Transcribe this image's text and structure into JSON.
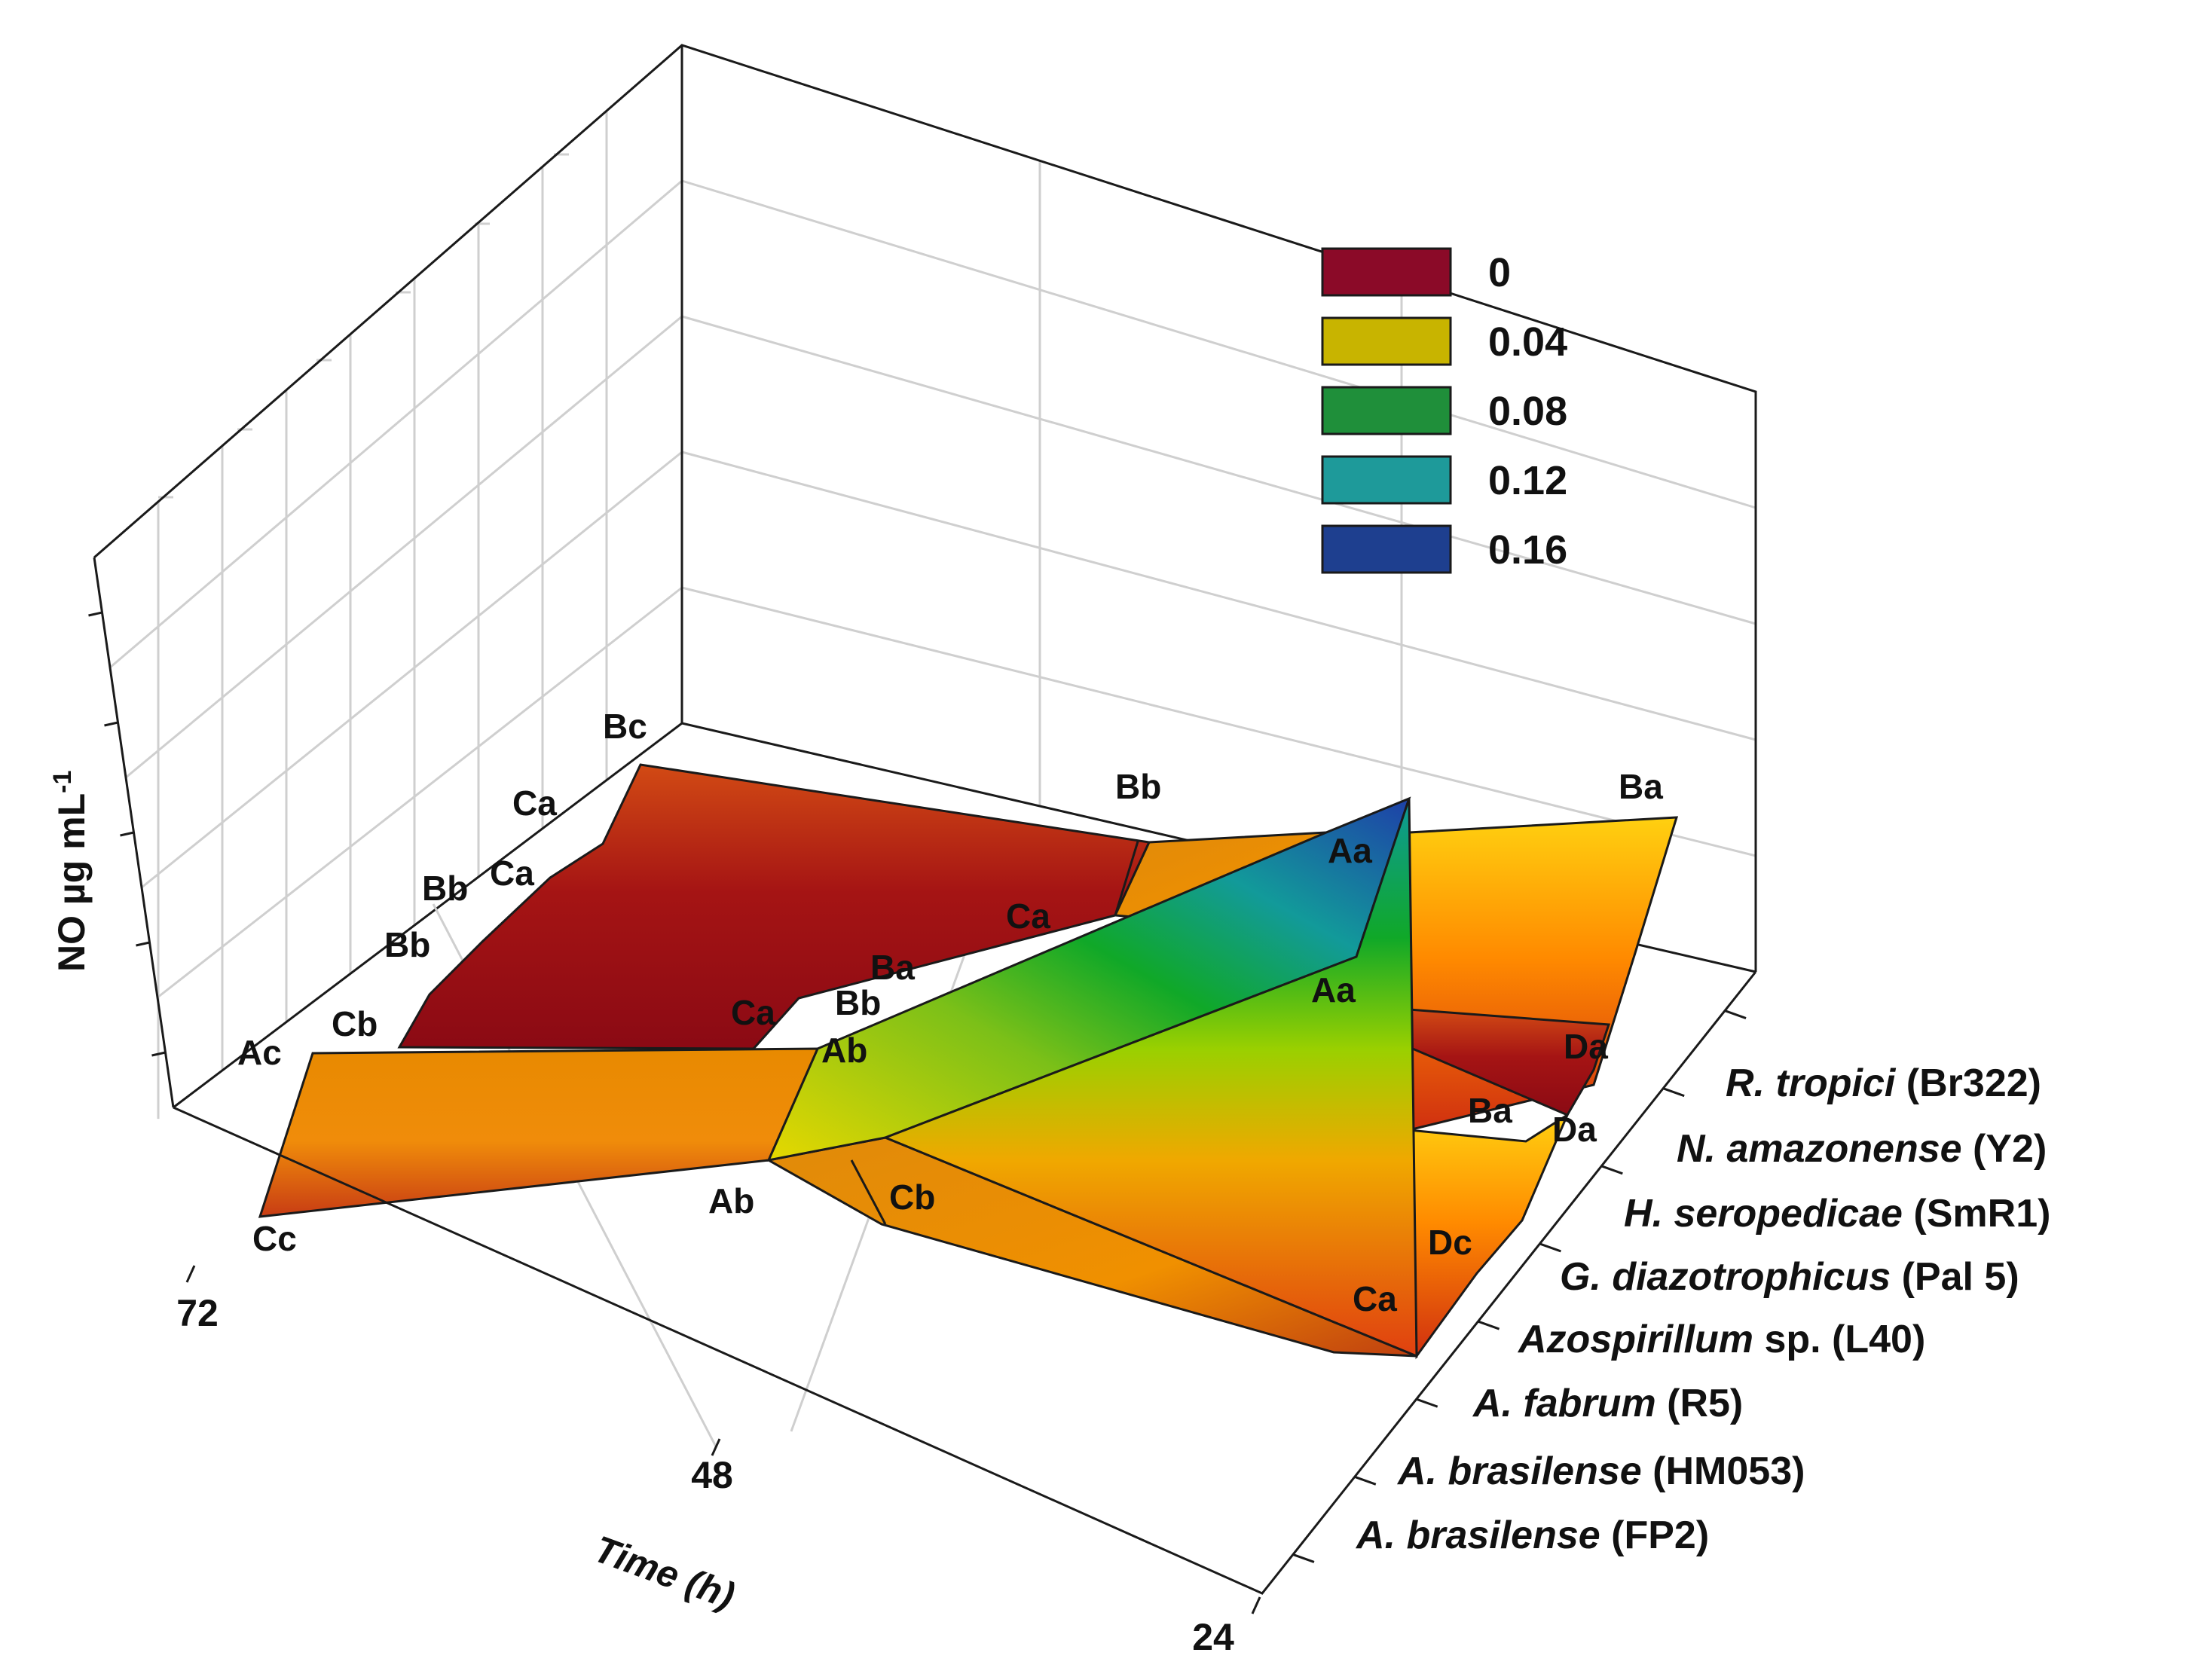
{
  "chart_data": {
    "type": "surface-3d",
    "x_axis": {
      "label": "Time (h)",
      "ticks": [
        "72",
        "48",
        "24"
      ]
    },
    "y_axis": {
      "label_parts": [
        "NO µg mL",
        "-1"
      ],
      "categories": [
        {
          "italic": "A. brasilense",
          "plain": " (FP2)"
        },
        {
          "italic": "A. brasilense",
          "plain": " (HM053)"
        },
        {
          "italic": "A. fabrum",
          "plain": " (R5)"
        },
        {
          "italic": "Azospirillum",
          "plain": " sp. (L40)"
        },
        {
          "italic": "G. diazotrophicus",
          "plain": " (Pal 5)"
        },
        {
          "italic": "H. seropedicae",
          "plain": " (SmR1)"
        },
        {
          "italic": "N. amazonense",
          "plain": " (Y2)"
        },
        {
          "italic": "R. tropici",
          "plain": " (Br322)"
        }
      ]
    },
    "z_axis": {
      "label": "NO µg mL-1",
      "range": [
        0,
        0.18
      ]
    },
    "legend": [
      {
        "label": "0",
        "color": "#8b0a28"
      },
      {
        "label": "0.04",
        "color": "#c8b400"
      },
      {
        "label": "0.08",
        "color": "#1f8f3a"
      },
      {
        "label": "0.12",
        "color": "#1e9a9a"
      },
      {
        "label": "0.16",
        "color": "#1e3f8f"
      }
    ],
    "annotations": {
      "t72": [
        "Cc",
        "Ac",
        "Cb",
        "Bb",
        "Bb",
        "Ca",
        "Ca",
        "Bc"
      ],
      "t48": [
        "Ab",
        "Cb",
        "Ab",
        "Ca",
        "Bb",
        "Ba",
        "Ca",
        "Bb"
      ],
      "t24": [
        "Ca",
        "Dc",
        "Da",
        "Ba",
        "Da",
        "Aa",
        "Aa",
        "Ba"
      ]
    },
    "series": [
      {
        "name": "A. brasilense (FP2)",
        "values": [
          0.03,
          0.004,
          0.006
        ]
      },
      {
        "name": "A. brasilense (HM053)",
        "values": [
          0.04,
          0.04,
          0.16
        ]
      },
      {
        "name": "A. fabrum (R5)",
        "values": [
          0.004,
          0.006,
          0.006
        ]
      },
      {
        "name": "Azospirillum sp. (L40)",
        "values": [
          0.004,
          0.006,
          0.006
        ]
      },
      {
        "name": "G. diazotrophicus (Pal 5)",
        "values": [
          0.004,
          0.006,
          0.006
        ]
      },
      {
        "name": "H. seropedicae (SmR1)",
        "values": [
          0.006,
          0.008,
          0.03
        ]
      },
      {
        "name": "N. amazonense (Y2)",
        "values": [
          0.004,
          0.006,
          0.006
        ]
      },
      {
        "name": "R. tropici (Br322)",
        "values": [
          0.004,
          0.025,
          0.045
        ]
      }
    ]
  }
}
